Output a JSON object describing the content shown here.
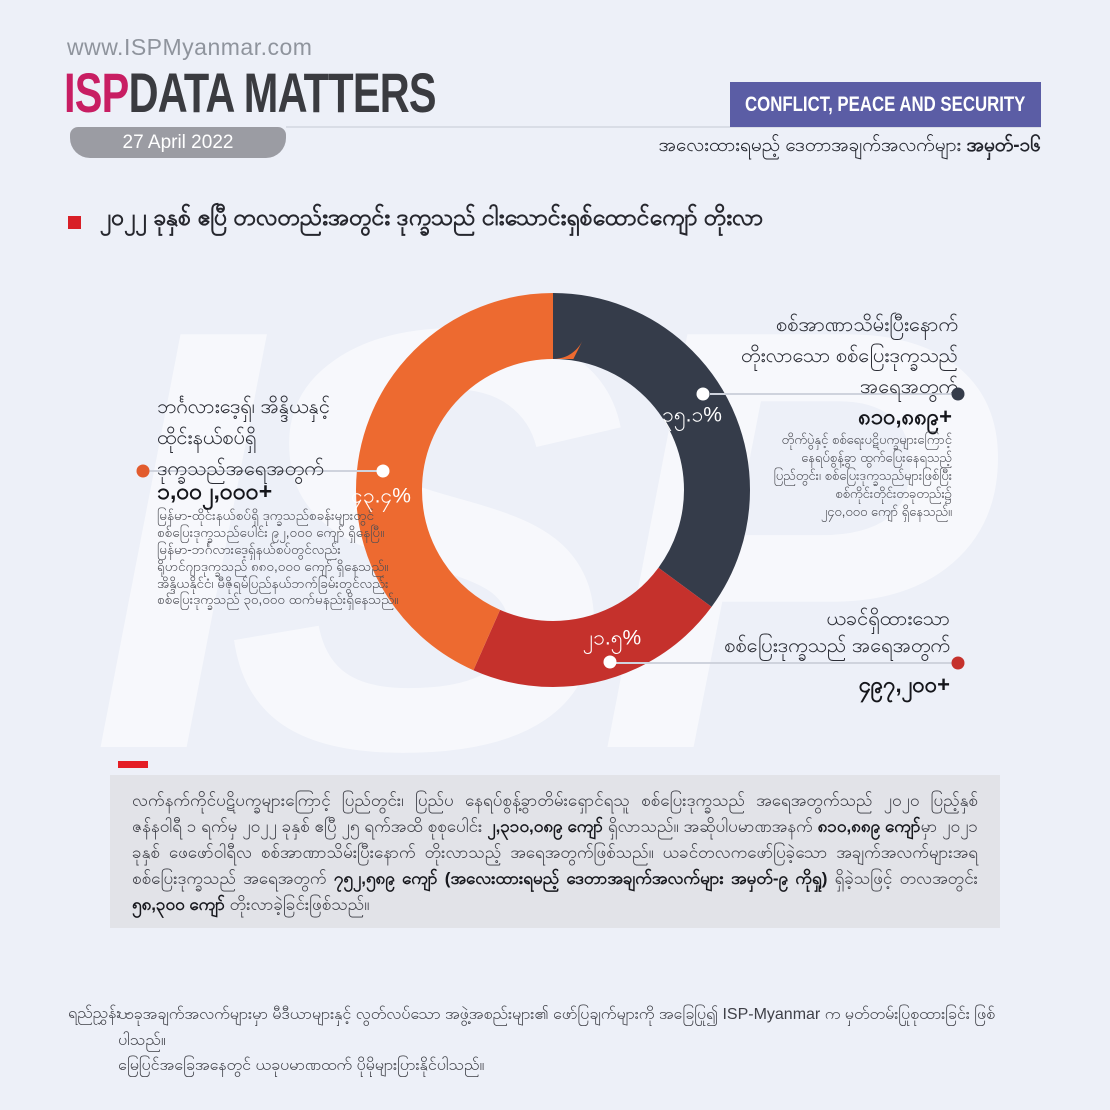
{
  "header": {
    "website": "www.ISPMyanmar.com",
    "brand_prefix": "ISP",
    "brand_rest": "DATA MATTERS",
    "date": "27 April 2022",
    "category_banner": "CONFLICT, PEACE AND SECURITY",
    "series_label": "အလေးထားရမည့် ဒေတာအချက်အလက်များ ",
    "series_number": "အမှတ်-၁၆"
  },
  "headline": {
    "text": "၂၀၂၂ ခုနှစ် ဧပြီ တလတည်းအတွင်း ဒုက္ခသည် ငါးသောင်းရှစ်ထောင်ကျော် တိုးလာ"
  },
  "watermark": {
    "text": "ISP"
  },
  "chart_data": {
    "type": "pie",
    "donut": true,
    "start_angle_deg": 0,
    "direction": "clockwise",
    "title": "၂၀၂၂ ခုနှစ် ဧပြီ တလတည်းအတွင်း ဒုက္ခသည် ငါးသောင်းရှစ်ထောင်ကျော် တိုးလာ",
    "series": [
      {
        "name": "စစ်အာဏာသိမ်းပြီးနောက် တိုးလာသော စစ်ပြေးဒုက္ခသည် အရေအတွက်",
        "value_pct": 35.1,
        "label_mm": "၃၅.၁%",
        "count_label": "၈၁၀,၈၈၉+",
        "color": "#353c4a"
      },
      {
        "name": "ယခင်ရှိထားသော စစ်ပြေးဒုက္ခသည် အရေအတွက်",
        "value_pct": 21.5,
        "label_mm": "၂၁.၅%",
        "count_label": "၄၉၇,၂၀၀+",
        "color": "#c5312c"
      },
      {
        "name": "ဘင်္ဂလားဒေ့ရှ်၊ အိန္ဒိယနှင့် ထိုင်းနယ်စပ်ရှိ ဒုက္ခသည်အရေအတွက်",
        "value_pct": 43.4,
        "label_mm": "၄၃.၄%",
        "count_label": "၁,၀၀၂,၀၀၀+",
        "color": "#ed6a30"
      }
    ]
  },
  "callouts": {
    "left": {
      "title": "ဘင်္ဂလားဒေ့ရှ်၊ အိန္ဒိယနှင့်\nထိုင်းနယ်စပ်ရှိ\nဒုက္ခသည်အရေအတွက်",
      "number": "၁,၀၀၂,၀၀၀+",
      "note": "မြန်မာ-ထိုင်းနယ်စပ်ရှိ ဒုက္ခသည်စခန်းများတွင်\nစစ်ပြေးဒုက္ခသည်ပေါင်း ၉၂,၀၀၀ ကျော် ရှိနေပြီ။\nမြန်မာ-ဘင်္ဂလားဒေ့ရှ်နယ်စပ်တွင်လည်း\nရိုဟင်ဂျာဒုက္ခသည် ၈၈၀,၀၀၀ ကျော် ရှိနေသည်။\nအိန္ဒိယနိုင်ငံ၊ မီဇိုရမ်ပြည်နယ်ဘက်ခြမ်းတွင်လည်း\nစစ်ပြေးဒုက္ခသည် ၃၀,၀၀၀ ထက်မနည်းရှိနေသည်။"
    },
    "right_top": {
      "title": "စစ်အာဏာသိမ်းပြီးနောက်\nတိုးလာသော စစ်ပြေးဒုက္ခသည်\nအရေအတွက်",
      "number": "၈၁၀,၈၈၉+",
      "note": "တိုက်ပွဲနှင့် စစ်ရေးပဋိပက္ခများကြောင့်\nနေရပ်စွန့်ခွာ ထွက်ပြေးနေရသည့်\nပြည်တွင်း၊ စစ်ပြေးဒုက္ခသည်များဖြစ်ပြီး\nစစ်ကိုင်းတိုင်းတခုတည်း၌\n၂၄၀,၀၀၀ ကျော် ရှိနေသည်။"
    },
    "right_bottom": {
      "title": "ယခင်ရှိထားသော\nစစ်ပြေးဒုက္ခသည် အရေအတွက်",
      "number": "၄၉၇,၂၀၀+"
    }
  },
  "summary": {
    "segments": [
      {
        "text": "လက်နက်ကိုင်ပဋိပက္ခများကြောင့် ပြည်တွင်း၊ ပြည်ပ နေရပ်စွန့်ခွာတိမ်းရှောင်ရသူ စစ်ပြေးဒုက္ခသည် အရေအတွက်သည် ၂၀၂၀ ပြည့်နှစ် ဇန်နဝါရီ ၁ ရက်မှ ၂၀၂၂ ခုနှစ် ဧပြီ ၂၅ ရက်အထိ စုစုပေါင်း ",
        "bold": false
      },
      {
        "text": "၂,၃၁၀,၀၈၉ ကျော်",
        "bold": true
      },
      {
        "text": " ရှိလာသည်။ အဆိုပါပမာဏအနက် ",
        "bold": false
      },
      {
        "text": "၈၁၀,၈၈၉ ကျော်",
        "bold": true
      },
      {
        "text": "မှာ ၂၀၂၁ ခုနှစ် ဖေဖော်ဝါရီလ စစ်အာဏာသိမ်းပြီးနောက် တိုးလာသည့် အရေအတွက်ဖြစ်သည်။ ယခင်တလကဖော်ပြခဲ့သော အချက်အလက်များအရ စစ်ပြေးဒုက္ခသည် အရေအတွက် ",
        "bold": false
      },
      {
        "text": "၇၅၂,၅၈၉ ကျော် (အလေးထားရမည့် ဒေတာအချက်အလက်များ အမှတ်-၉ ကိုရှု)",
        "bold": true
      },
      {
        "text": " ရှိခဲ့သဖြင့် တလအတွင်း ",
        "bold": false
      },
      {
        "text": "၅၈,၃၀၀ ကျော်",
        "bold": true
      },
      {
        "text": " တိုးလာခဲ့ခြင်းဖြစ်သည်။",
        "bold": false
      }
    ]
  },
  "footer": {
    "label": "ရည်ညွှန်း -",
    "note": "ယခုအချက်အလက်များမှာ မီဒီယာများနှင့် လွတ်လပ်သော အဖွဲ့အစည်းများ၏ ဖော်ပြချက်များကို အခြေပြု၍ ISP-Myanmar က မှတ်တမ်းပြုစုထားခြင်း ဖြစ်ပါသည်။\nမြေပြင်အခြေအနေတွင် ယခုပမာဏထက် ပိုမိုများပြားနိုင်ပါသည်။"
  },
  "colors": {
    "background": "#edf0f8",
    "brand_magenta": "#c81e63",
    "banner_purple": "#5b5da5",
    "slice_navy": "#353c4a",
    "slice_red": "#c5312c",
    "slice_orange": "#ed6a30",
    "accent_red": "#d81f27",
    "summary_box": "#e2e3e8",
    "date_badge": "#9b9ca3"
  }
}
